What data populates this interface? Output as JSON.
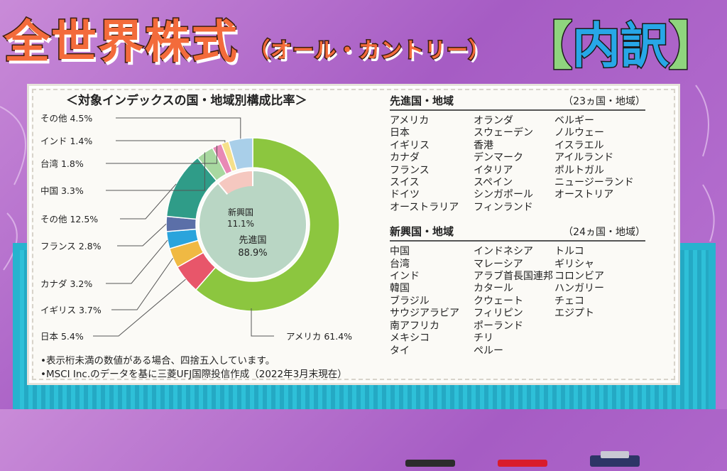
{
  "header": {
    "title_main": "全世界株式",
    "title_sub": "（オール・カントリー）",
    "badge_left": "【",
    "badge_text": "内訳",
    "badge_right": "】"
  },
  "chart_data": {
    "type": "pie",
    "title": "＜対象インデックスの国・地域別構成比率＞",
    "inner_ring": [
      {
        "label": "先進国",
        "value": 88.9,
        "display": "88.9%",
        "color": "#b9d6c4"
      },
      {
        "label": "新興国",
        "value": 11.1,
        "display": "11.1%",
        "color": "#f5c8c0"
      }
    ],
    "outer_ring": [
      {
        "label": "アメリカ",
        "value": 61.4,
        "display": "61.4%",
        "color": "#8cc63f"
      },
      {
        "label": "日本",
        "value": 5.4,
        "display": "5.4%",
        "color": "#e8566a"
      },
      {
        "label": "イギリス",
        "value": 3.7,
        "display": "3.7%",
        "color": "#f0b943"
      },
      {
        "label": "カナダ",
        "value": 3.2,
        "display": "3.2%",
        "color": "#2aa4dc"
      },
      {
        "label": "フランス",
        "value": 2.8,
        "display": "2.8%",
        "color": "#5b6fa8"
      },
      {
        "label": "その他",
        "value": 12.5,
        "display": "12.5%",
        "color": "#2f9c88"
      },
      {
        "label": "中国",
        "value": 3.3,
        "display": "3.3%",
        "color": "#a8d8a0"
      },
      {
        "label": "台湾",
        "value": 1.8,
        "display": "1.8%",
        "color": "#e889b5"
      },
      {
        "label": "インド",
        "value": 1.4,
        "display": "1.4%",
        "color": "#f6e08a"
      },
      {
        "label": "その他",
        "value": 4.5,
        "display": "4.5%",
        "color": "#a9cfe9"
      }
    ],
    "center_labels": {
      "developed_name": "先進国",
      "developed_pct": "88.9%",
      "emerging_name": "新興国",
      "emerging_pct": "11.1%"
    }
  },
  "notes": [
    "•表示桁未満の数値がある場合、四捨五入しています。",
    "•MSCI Inc.のデータを基に三菱UFJ国際投信作成（2022年3月末現在）"
  ],
  "developed": {
    "heading": "先進国・地域",
    "count": "（23ヵ国・地域）",
    "columns": [
      [
        "アメリカ",
        "日本",
        "イギリス",
        "カナダ",
        "フランス",
        "スイス",
        "ドイツ",
        "オーストラリア"
      ],
      [
        "オランダ",
        "スウェーデン",
        "香港",
        "デンマーク",
        "イタリア",
        "スペイン",
        "シンガポール",
        "フィンランド"
      ],
      [
        "ベルギー",
        "ノルウェー",
        "イスラエル",
        "アイルランド",
        "ポルトガル",
        "ニュージーランド",
        "オーストリア"
      ]
    ]
  },
  "emerging": {
    "heading": "新興国・地域",
    "count": "（24ヵ国・地域）",
    "columns": [
      [
        "中国",
        "台湾",
        "インド",
        "韓国",
        "ブラジル",
        "サウジアラビア",
        "南アフリカ",
        "メキシコ",
        "タイ"
      ],
      [
        "インドネシア",
        "マレーシア",
        "アラブ首長国連邦",
        "カタール",
        "クウェート",
        "フィリピン",
        "ポーランド",
        "チリ",
        "ペルー"
      ],
      [
        "トルコ",
        "ギリシャ",
        "コロンビア",
        "ハンガリー",
        "チェコ",
        "エジプト"
      ]
    ]
  }
}
